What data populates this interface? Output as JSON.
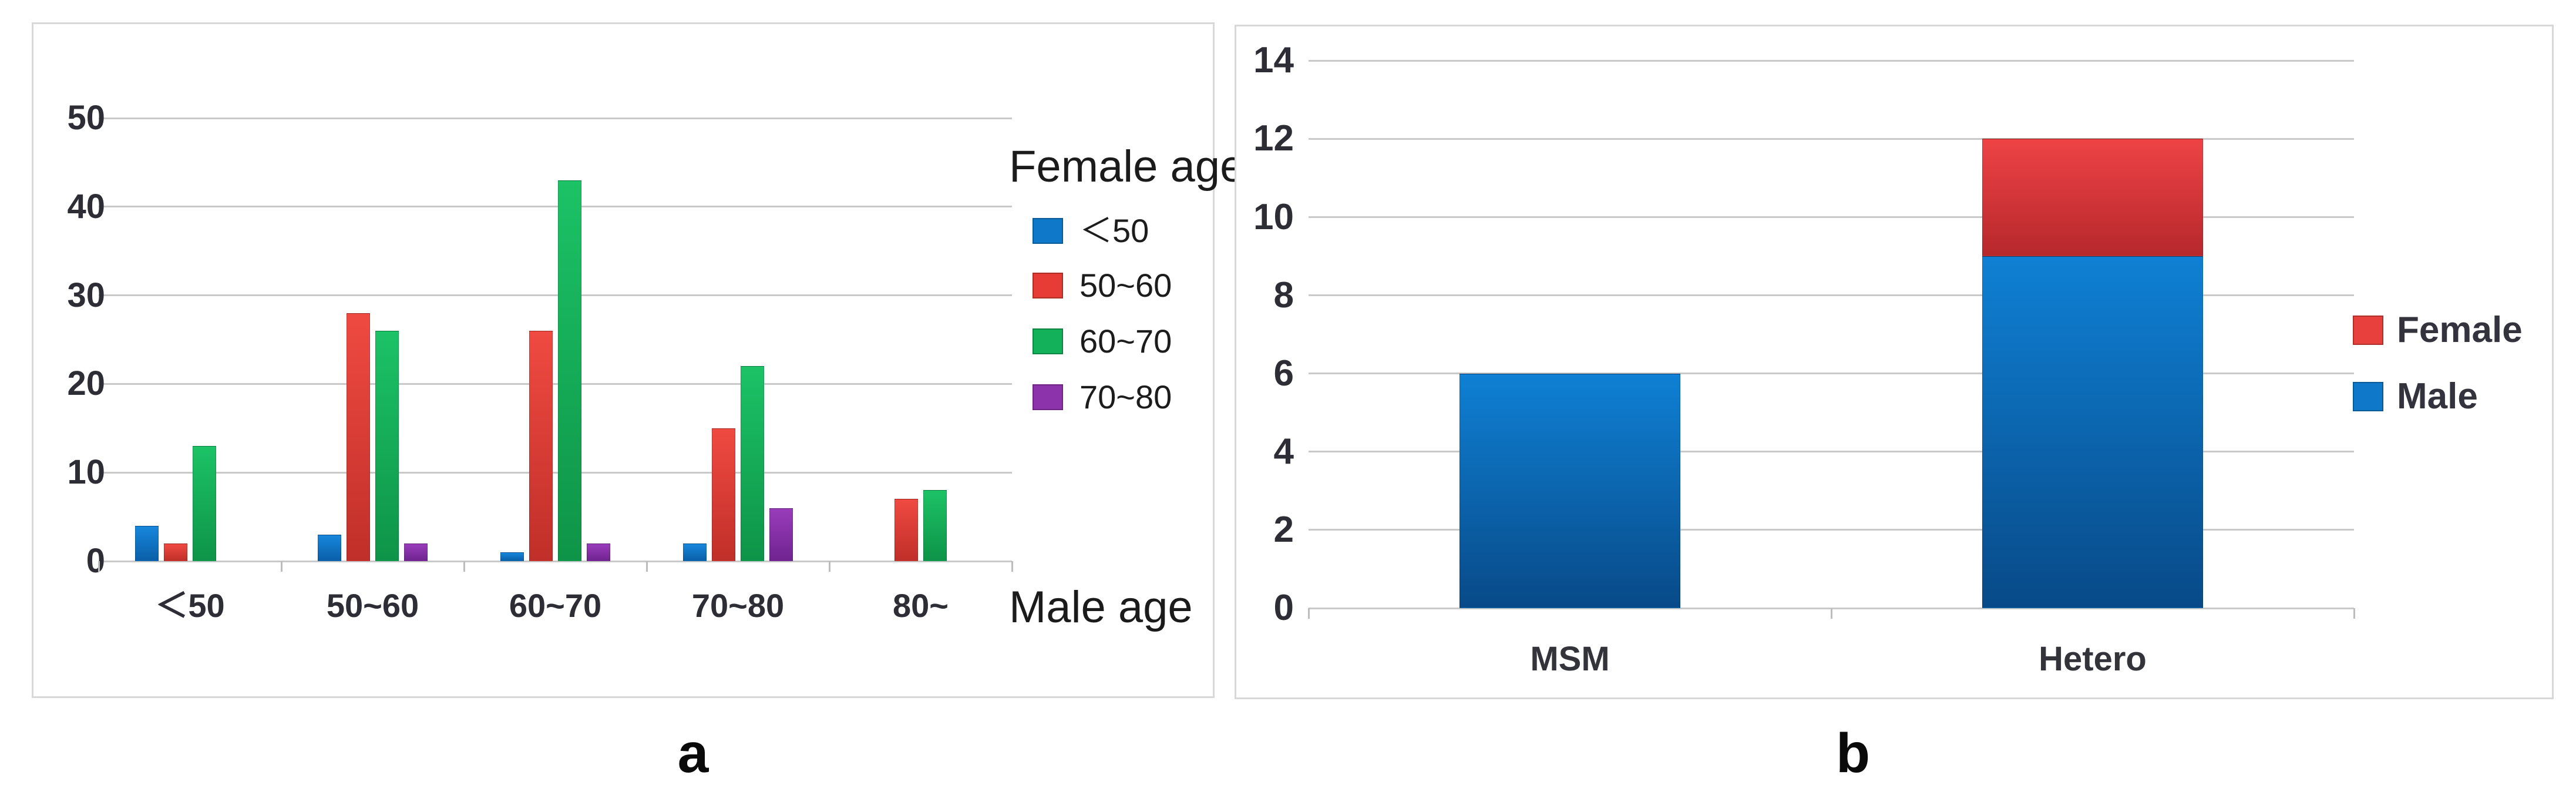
{
  "figure": {
    "background": "#ffffff",
    "grid_color": "#c9c9c9",
    "panel_border_color": "#d8d8d8"
  },
  "captions": {
    "a": "a",
    "b": "b"
  },
  "chart_data": [
    {
      "id": "a",
      "type": "bar",
      "title": "",
      "legend_title": "Female age",
      "xlabel": "Male age",
      "ylabel": "",
      "categories": [
        "＜50",
        "50~60",
        "60~70",
        "70~80",
        "80~"
      ],
      "series": [
        {
          "name": "＜50",
          "color": "#0f78c8",
          "color_top": "#1787dc",
          "color_bottom": "#0a5fa8",
          "values": [
            4,
            3,
            1,
            2,
            0
          ]
        },
        {
          "name": "50~60",
          "color": "#e73c36",
          "color_top": "#ef4a41",
          "color_bottom": "#c02f29",
          "values": [
            2,
            28,
            26,
            15,
            7
          ]
        },
        {
          "name": "60~70",
          "color": "#13b25a",
          "color_top": "#1cc266",
          "color_bottom": "#0e9448",
          "values": [
            13,
            26,
            43,
            22,
            8
          ]
        },
        {
          "name": "70~80",
          "color": "#8c32aa",
          "color_top": "#993cba",
          "color_bottom": "#6f2490",
          "values": [
            0,
            2,
            2,
            6,
            0
          ]
        }
      ],
      "ylim": [
        0,
        50
      ],
      "yticks": [
        0,
        10,
        20,
        30,
        40,
        50
      ],
      "grid": true,
      "legend_position": "right"
    },
    {
      "id": "b",
      "type": "stacked-bar",
      "title": "",
      "xlabel": "",
      "ylabel": "",
      "categories": [
        "MSM",
        "Hetero"
      ],
      "series": [
        {
          "name": "Male",
          "color": "#0f78c8",
          "color_top": "#0f80d4",
          "color_bottom": "#084a88",
          "values": [
            6,
            9
          ]
        },
        {
          "name": "Female",
          "color": "#e8403c",
          "color_top": "#ee4345",
          "color_bottom": "#b6282c",
          "values": [
            0,
            3
          ]
        }
      ],
      "legend_order": [
        "Female",
        "Male"
      ],
      "ylim": [
        0,
        14
      ],
      "yticks": [
        0,
        2,
        4,
        6,
        8,
        10,
        12,
        14
      ],
      "grid": true,
      "legend_position": "right"
    }
  ]
}
